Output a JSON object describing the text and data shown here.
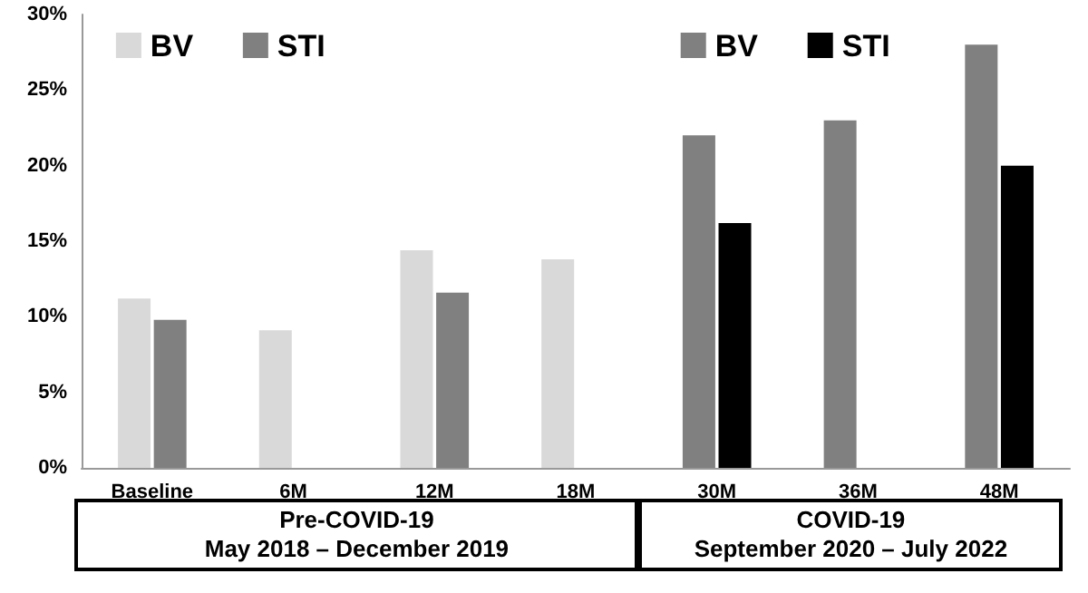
{
  "chart_data": {
    "type": "bar",
    "categories": [
      "Baseline",
      "6M",
      "12M",
      "18M",
      "30M",
      "36M",
      "48M"
    ],
    "series": [
      {
        "name": "BV",
        "color": "#d9d9d9",
        "values": [
          11.2,
          9.1,
          14.4,
          13.8,
          null,
          null,
          null
        ]
      },
      {
        "name": "STI",
        "color": "#808080",
        "values": [
          9.8,
          null,
          11.6,
          null,
          null,
          null,
          null
        ]
      },
      {
        "name": "BV",
        "color": "#808080",
        "values": [
          null,
          null,
          null,
          null,
          22,
          23,
          28
        ]
      },
      {
        "name": "STI",
        "color": "#000000",
        "values": [
          null,
          null,
          null,
          null,
          16.2,
          null,
          20
        ]
      }
    ],
    "ylim": [
      0,
      30
    ],
    "yticks": [
      {
        "value": 0,
        "label": "0%"
      },
      {
        "value": 5,
        "label": "5%"
      },
      {
        "value": 10,
        "label": "10%"
      },
      {
        "value": 15,
        "label": "15%"
      },
      {
        "value": 20,
        "label": "20%"
      },
      {
        "value": 25,
        "label": "25%"
      },
      {
        "value": 30,
        "label": "30%"
      }
    ],
    "grid": false,
    "legend": "top",
    "annotations": [
      "Pre-COVID-19\nMay 2018 – December 2019",
      "COVID-19\nSeptember 2020 – July 2022"
    ]
  }
}
